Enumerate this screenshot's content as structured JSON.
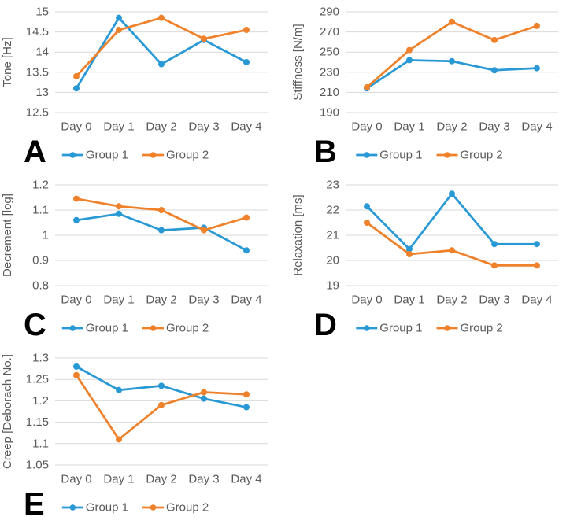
{
  "figure": {
    "background": "#ffffff",
    "grid_color": "#d9d9d9",
    "text_color": "#595959",
    "panel_label_color": "#000000",
    "series_colors": {
      "group1": "#2999d5",
      "group2": "#f0812b"
    }
  },
  "chart_data": [
    {
      "id": "A",
      "type": "line",
      "panel_label": "A",
      "ylabel": "Tone [Hz]",
      "xlabel": "",
      "title": "",
      "categories": [
        "Day 0",
        "Day 1",
        "Day 2",
        "Day 3",
        "Day 4"
      ],
      "ylim": [
        12.5,
        15
      ],
      "ytick_step": 0.5,
      "grid": true,
      "legend_position": "bottom",
      "series": [
        {
          "name": "Group 1",
          "color": "#2999d5",
          "values": [
            13.1,
            14.85,
            13.7,
            14.3,
            13.75
          ]
        },
        {
          "name": "Group 2",
          "color": "#f0812b",
          "values": [
            13.4,
            14.55,
            14.85,
            14.33,
            14.55
          ]
        }
      ]
    },
    {
      "id": "B",
      "type": "line",
      "panel_label": "B",
      "ylabel": "Stiffness [N/m]",
      "xlabel": "",
      "title": "",
      "categories": [
        "Day 0",
        "Day 1",
        "Day 2",
        "Day 3",
        "Day 4"
      ],
      "ylim": [
        190,
        290
      ],
      "ytick_step": 20,
      "grid": true,
      "legend_position": "bottom",
      "series": [
        {
          "name": "Group 1",
          "color": "#2999d5",
          "values": [
            214,
            242,
            241,
            232,
            234
          ]
        },
        {
          "name": "Group 2",
          "color": "#f0812b",
          "values": [
            215,
            252,
            280,
            262,
            276
          ]
        }
      ]
    },
    {
      "id": "C",
      "type": "line",
      "panel_label": "C",
      "ylabel": "Decrement [log]",
      "xlabel": "",
      "title": "",
      "categories": [
        "Day 0",
        "Day 1",
        "Day 2",
        "Day 3",
        "Day 4"
      ],
      "ylim": [
        0.8,
        1.2
      ],
      "ytick_step": 0.1,
      "grid": true,
      "legend_position": "bottom",
      "series": [
        {
          "name": "Group 1",
          "color": "#2999d5",
          "values": [
            1.06,
            1.085,
            1.02,
            1.03,
            0.94
          ]
        },
        {
          "name": "Group 2",
          "color": "#f0812b",
          "values": [
            1.145,
            1.115,
            1.1,
            1.02,
            1.07
          ]
        }
      ]
    },
    {
      "id": "D",
      "type": "line",
      "panel_label": "D",
      "ylabel": "Relaxation [ms]",
      "xlabel": "",
      "title": "",
      "categories": [
        "Day 0",
        "Day 1",
        "Day 2",
        "Day 3",
        "Day 4"
      ],
      "ylim": [
        19,
        23
      ],
      "ytick_step": 1,
      "grid": true,
      "legend_position": "bottom",
      "series": [
        {
          "name": "Group 1",
          "color": "#2999d5",
          "values": [
            22.15,
            20.45,
            22.65,
            20.65,
            20.65
          ]
        },
        {
          "name": "Group 2",
          "color": "#f0812b",
          "values": [
            21.5,
            20.25,
            20.4,
            19.8,
            19.8
          ]
        }
      ]
    },
    {
      "id": "E",
      "type": "line",
      "panel_label": "E",
      "ylabel": "Creep [Deborach No.]",
      "xlabel": "",
      "title": "",
      "categories": [
        "Day 0",
        "Day 1",
        "Day 2",
        "Day 3",
        "Day 4"
      ],
      "ylim": [
        1.05,
        1.3
      ],
      "ytick_step": 0.05,
      "grid": true,
      "legend_position": "bottom",
      "series": [
        {
          "name": "Group 1",
          "color": "#2999d5",
          "values": [
            1.28,
            1.225,
            1.235,
            1.205,
            1.185
          ]
        },
        {
          "name": "Group 2",
          "color": "#f0812b",
          "values": [
            1.26,
            1.11,
            1.19,
            1.22,
            1.215
          ]
        }
      ]
    }
  ]
}
